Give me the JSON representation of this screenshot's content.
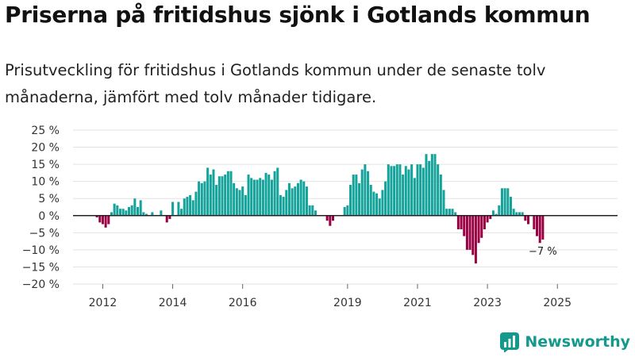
{
  "title": "Priserna på fritidshus sjönk i Gotlands kommun",
  "subtitle": "Prisutveckling för fritidshus i Gotlands kommun under de senaste tolv månaderna, jämfört med tolv månader tidigare.",
  "brand": {
    "name": "Newsworthy",
    "logo_icon": "newsworthy-logo-icon"
  },
  "colors": {
    "positive": "#14a39b",
    "negative": "#990044",
    "zero_line": "#222222",
    "grid": "#e3e3e3"
  },
  "chart_data": {
    "type": "bar",
    "title": "Priserna på fritidshus sjönk i Gotlands kommun",
    "xlabel": "",
    "ylabel": "",
    "ylim": [
      -20,
      25
    ],
    "xlim": [
      2011.15,
      2026.72
    ],
    "yticks": [
      25,
      20,
      15,
      10,
      5,
      0,
      -5,
      -10,
      -15,
      -20
    ],
    "ytick_labels": [
      "25 %",
      "20 %",
      "15 %",
      "10 %",
      "5 %",
      "0 %",
      "−5 %",
      "−10 %",
      "−15 %",
      "−20 %"
    ],
    "xticks": [
      2012,
      2014,
      2016,
      2019,
      2021,
      2023,
      2025
    ],
    "xtick_labels": [
      "2012",
      "2014",
      "2016",
      "2019",
      "2021",
      "2023",
      "2025"
    ],
    "grid": true,
    "start": [
      2011,
      11
    ],
    "series": [
      {
        "name": "Prisutveckling",
        "values": [
          -0.5,
          -2,
          -2.5,
          -3.5,
          -2.5,
          1,
          3.5,
          3,
          2,
          2,
          1.5,
          2.5,
          3,
          5,
          2.5,
          4.5,
          1,
          0.5,
          0,
          1,
          0,
          0,
          1.5,
          0,
          -2,
          -1,
          4,
          0,
          4,
          2,
          5,
          5.5,
          6,
          4.5,
          7,
          10,
          9.5,
          10,
          14,
          12,
          13.5,
          9,
          11.5,
          11.5,
          12,
          13,
          13,
          9.5,
          8,
          7.5,
          8.5,
          6,
          12,
          11,
          10.5,
          10.5,
          11,
          10.5,
          12.5,
          12,
          10.5,
          13,
          14,
          6,
          5.5,
          7.5,
          9.5,
          8,
          8.5,
          9.5,
          10.5,
          10,
          8.5,
          3,
          3,
          1.5,
          0,
          0,
          0,
          -1.5,
          -3,
          -1.5,
          0,
          0,
          0,
          2.5,
          3,
          9,
          12,
          12,
          9.5,
          13.5,
          15,
          13,
          9,
          7,
          6.5,
          5,
          7.5,
          10,
          15,
          14.5,
          14.5,
          15,
          15,
          12,
          14.5,
          13.5,
          15,
          11,
          15,
          15,
          14,
          18,
          16,
          18,
          18,
          15,
          12,
          7.5,
          2,
          2,
          2,
          1,
          -4,
          -4,
          -6,
          -10,
          -10,
          -11.5,
          -14,
          -8,
          -6.5,
          -4,
          -2,
          -1,
          1.5,
          0.5,
          3,
          8,
          8,
          8,
          5.5,
          2,
          1,
          1,
          1,
          -1.5,
          -2.5,
          0,
          -4,
          -6,
          -8,
          -7
        ]
      }
    ],
    "annotations": [
      {
        "text": "−7 %",
        "target": "last_bar"
      }
    ]
  }
}
